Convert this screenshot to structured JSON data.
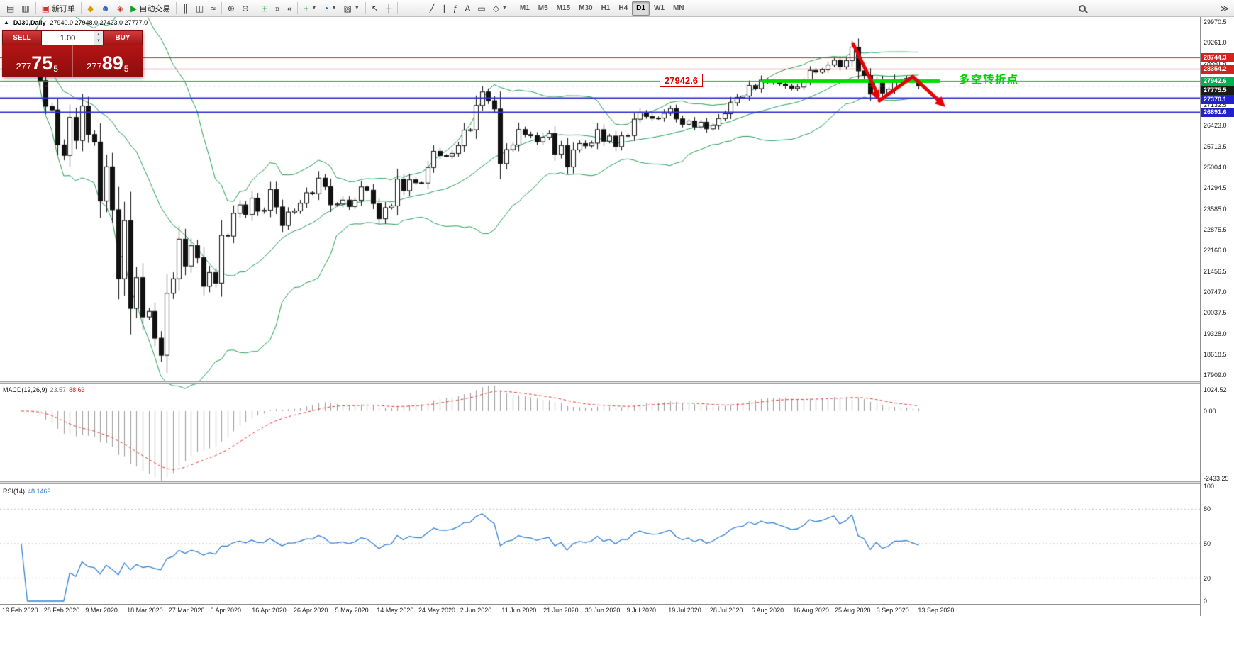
{
  "toolbar": {
    "items": [
      {
        "type": "btn",
        "name": "new-chart-button",
        "glyph": "▤",
        "cls": "dark"
      },
      {
        "type": "btn",
        "name": "profiles-button",
        "glyph": "▥",
        "cls": "dark"
      },
      {
        "type": "sep"
      },
      {
        "type": "btn",
        "name": "new-order-button",
        "glyph": "▣",
        "cls": "red",
        "label": "新订单"
      },
      {
        "type": "sep"
      },
      {
        "type": "btn",
        "name": "history-center-button",
        "glyph": "◆",
        "cls": "yellow"
      },
      {
        "type": "btn",
        "name": "community-button",
        "glyph": "☻",
        "cls": "blue"
      },
      {
        "type": "btn",
        "name": "strategy-tester-button",
        "glyph": "◈",
        "cls": "red"
      },
      {
        "type": "btn",
        "name": "autotrading-button",
        "glyph": "▶",
        "cls": "green",
        "label": "自动交易"
      },
      {
        "type": "sep"
      },
      {
        "type": "btn",
        "name": "bar-chart-button",
        "glyph": "║",
        "cls": "dark"
      },
      {
        "type": "btn",
        "name": "candlestick-chart-button",
        "glyph": "◫",
        "cls": "dark"
      },
      {
        "type": "btn",
        "name": "line-chart-button",
        "glyph": "≈",
        "cls": "dark"
      },
      {
        "type": "sep"
      },
      {
        "type": "btn",
        "name": "zoom-in-button",
        "glyph": "⊕",
        "cls": "dark"
      },
      {
        "type": "btn",
        "name": "zoom-out-button",
        "glyph": "⊖",
        "cls": "dark"
      },
      {
        "type": "sep"
      },
      {
        "type": "btn",
        "name": "tile-windows-button",
        "glyph": "⊞",
        "cls": "green"
      },
      {
        "type": "btn",
        "name": "auto-scroll-button",
        "glyph": "»",
        "cls": "dark"
      },
      {
        "type": "btn",
        "name": "chart-shift-button",
        "glyph": "«",
        "cls": "dark"
      },
      {
        "type": "sep"
      },
      {
        "type": "btn",
        "name": "indicators-button",
        "glyph": "+",
        "cls": "green",
        "dropdown": true
      },
      {
        "type": "btn",
        "name": "periods-button",
        "glyph": "◔",
        "cls": "blue",
        "dropdown": true
      },
      {
        "type": "btn",
        "name": "templates-button",
        "glyph": "▧",
        "cls": "dark",
        "dropdown": true
      },
      {
        "type": "sep"
      },
      {
        "type": "btn",
        "name": "cursor-button",
        "glyph": "↖",
        "cls": "dark"
      },
      {
        "type": "btn",
        "name": "crosshair-button",
        "glyph": "┼",
        "cls": "dark"
      },
      {
        "type": "sep"
      },
      {
        "type": "btn",
        "name": "vertical-line-button",
        "glyph": "│",
        "cls": "dark"
      },
      {
        "type": "btn",
        "name": "horizontal-line-button",
        "glyph": "─",
        "cls": "dark"
      },
      {
        "type": "btn",
        "name": "trendline-button",
        "glyph": "╱",
        "cls": "dark"
      },
      {
        "type": "btn",
        "name": "channel-button",
        "glyph": "∥",
        "cls": "dark"
      },
      {
        "type": "btn",
        "name": "fibonacci-button",
        "glyph": "ƒ",
        "cls": "dark"
      },
      {
        "type": "btn",
        "name": "text-button",
        "glyph": "A",
        "cls": "dark"
      },
      {
        "type": "btn",
        "name": "label-button",
        "glyph": "▭",
        "cls": "dark"
      },
      {
        "type": "btn",
        "name": "shapes-button",
        "glyph": "◇",
        "cls": "dark",
        "dropdown": true
      },
      {
        "type": "sep"
      },
      {
        "type": "tf",
        "name": "tf-m1-button",
        "label": "M1"
      },
      {
        "type": "tf",
        "name": "tf-m5-button",
        "label": "M5"
      },
      {
        "type": "tf",
        "name": "tf-m15-button",
        "label": "M15"
      },
      {
        "type": "tf",
        "name": "tf-m30-button",
        "label": "M30"
      },
      {
        "type": "tf",
        "name": "tf-h1-button",
        "label": "H1"
      },
      {
        "type": "tf",
        "name": "tf-h4-button",
        "label": "H4"
      },
      {
        "type": "tf",
        "name": "tf-d1-button",
        "label": "D1",
        "active": true
      },
      {
        "type": "tf",
        "name": "tf-w1-button",
        "label": "W1"
      },
      {
        "type": "tf",
        "name": "tf-mn-button",
        "label": "MN"
      }
    ],
    "active_timeframe": "D1"
  },
  "chart": {
    "symbol_label": "DJ30,Daily",
    "ohlc_label": "27940.0 27948.0 27423.0 27777.0"
  },
  "trade_panel": {
    "sell_label": "SELL",
    "buy_label": "BUY",
    "lot": "1.00",
    "sell_price": "27775.5",
    "buy_price": "27789.5"
  },
  "annotations": {
    "price_tag": "27942.6",
    "turning_point_note": "多空转折点",
    "arrow": "red-zigzag-down-arrow"
  },
  "panes": {
    "macd": {
      "name": "MACD(12,26,9)",
      "value_main": "23.57",
      "value_sig": "88.63",
      "axis": [
        "1024.52",
        "0.00",
        "-2433.25"
      ]
    },
    "rsi": {
      "name": "RSI(14)",
      "value": "48.1469",
      "axis": [
        "100",
        "80",
        "50",
        "20",
        "0"
      ]
    }
  },
  "price_axis": {
    "ticks": [
      "29970.5",
      "29261.0",
      "28551.5",
      "27842.0",
      "27132.5",
      "26423.0",
      "25713.5",
      "25004.0",
      "24294.5",
      "23585.0",
      "22875.5",
      "22166.0",
      "21456.5",
      "20747.0",
      "20037.5",
      "19328.0",
      "18618.5",
      "17909.0"
    ]
  },
  "chart_data": {
    "type": "candlestick",
    "symbol": "DJ30",
    "timeframe": "Daily",
    "ohlc_current": {
      "open": 27940.0,
      "high": 27948.0,
      "low": 27423.0,
      "close": 27777.0
    },
    "current_bid": 27775.5,
    "current_ask": 27789.5,
    "price_range_visible": [
      17909.0,
      29970.5
    ],
    "closes": [
      29348,
      29219,
      28992,
      27960,
      27081,
      26957,
      25766,
      25409,
      26703,
      25917,
      27090,
      26121,
      25864,
      23851,
      25018,
      23553,
      21200,
      23185,
      20188,
      21237,
      19898,
      20087,
      19173,
      18591,
      20704,
      21200,
      22552,
      21636,
      22327,
      21917,
      20943,
      21413,
      21052,
      22679,
      22653,
      23433,
      23719,
      23390,
      23949,
      23504,
      23537,
      24242,
      23650,
      23018,
      23475,
      23515,
      23775,
      24133,
      24101,
      24633,
      24345,
      23723,
      23749,
      23883,
      23664,
      23875,
      24331,
      24221,
      23764,
      23247,
      23625,
      23685,
      24597,
      24206,
      24575,
      24474,
      24465,
      24995,
      25548,
      25400,
      25383,
      25475,
      25742,
      26269,
      26281,
      27110,
      27572,
      27272,
      26989,
      25128,
      25605,
      25763,
      26289,
      26119,
      26080,
      25871,
      26024,
      26156,
      25445,
      25745,
      25015,
      25595,
      25812,
      25734,
      25827,
      26286,
      25890,
      26067,
      25706,
      26075,
      26085,
      26642,
      26870,
      26734,
      26671,
      26680,
      26840,
      27005,
      26652,
      26469,
      26584,
      26379,
      26539,
      26313,
      26428,
      26664,
      26828,
      27201,
      27386,
      27433,
      27791,
      27686,
      27976,
      27896,
      27931,
      27844,
      27778,
      27692,
      27739,
      27930,
      28308,
      28248,
      28331,
      28492,
      28653,
      28430,
      28645,
      29100,
      28292,
      28133,
      27500,
      27940,
      27534,
      27665,
      27993,
      27995,
      28032,
      27902,
      27777
    ],
    "x_ticks": [
      "19 Feb 2020",
      "28 Feb 2020",
      "9 Mar 2020",
      "18 Mar 2020",
      "27 Mar 2020",
      "6 Apr 2020",
      "16 Apr 2020",
      "26 Apr 2020",
      "5 May 2020",
      "14 May 2020",
      "24 May 2020",
      "2 Jun 2020",
      "11 Jun 2020",
      "21 Jun 2020",
      "30 Jun 2020",
      "9 Jul 2020",
      "19 Jul 2020",
      "28 Jul 2020",
      "6 Aug 2020",
      "16 Aug 2020",
      "25 Aug 2020",
      "3 Sep 2020",
      "13 Sep 2020"
    ],
    "hlines": [
      {
        "price": 28744.3,
        "label": "28744.3",
        "color": "#cc2a2a",
        "box_color": "#d32424",
        "width": 1
      },
      {
        "price": 28354.2,
        "label": "28354.2",
        "color": "#cc2a2a",
        "box_color": "#d32424",
        "width": 1
      },
      {
        "price": 27942.6,
        "label": "27942.6",
        "color": "#00b050",
        "box_color": "#00b050",
        "width": 1,
        "thick_segment": [
          1075,
          1325
        ],
        "thick_width": 5,
        "thick_color": "#00dd00"
      },
      {
        "price": 27775.5,
        "label": "27775.5",
        "color": "#b5b5b5",
        "box_color": "#1b1b1b",
        "width": 1,
        "dashed": true,
        "role": "bid"
      },
      {
        "price": 27370.1,
        "label": "27370.1",
        "color": "#3030cf",
        "box_color": "#2222cc",
        "width": 2
      },
      {
        "price": 26891.6,
        "label": "26891.6",
        "color": "#3030cf",
        "box_color": "#2222cc",
        "width": 2
      }
    ],
    "indicators": [
      {
        "name": "Bollinger Bands",
        "period": 20,
        "deviation": 2,
        "applied_to": "main"
      },
      {
        "name": "MACD",
        "fast_ema": 12,
        "slow_ema": 26,
        "signal": 9,
        "current_main": 23.57,
        "current_signal": 88.63
      },
      {
        "name": "RSI",
        "period": 14,
        "current": 48.1469,
        "levels": [
          20,
          50,
          80
        ]
      }
    ]
  }
}
